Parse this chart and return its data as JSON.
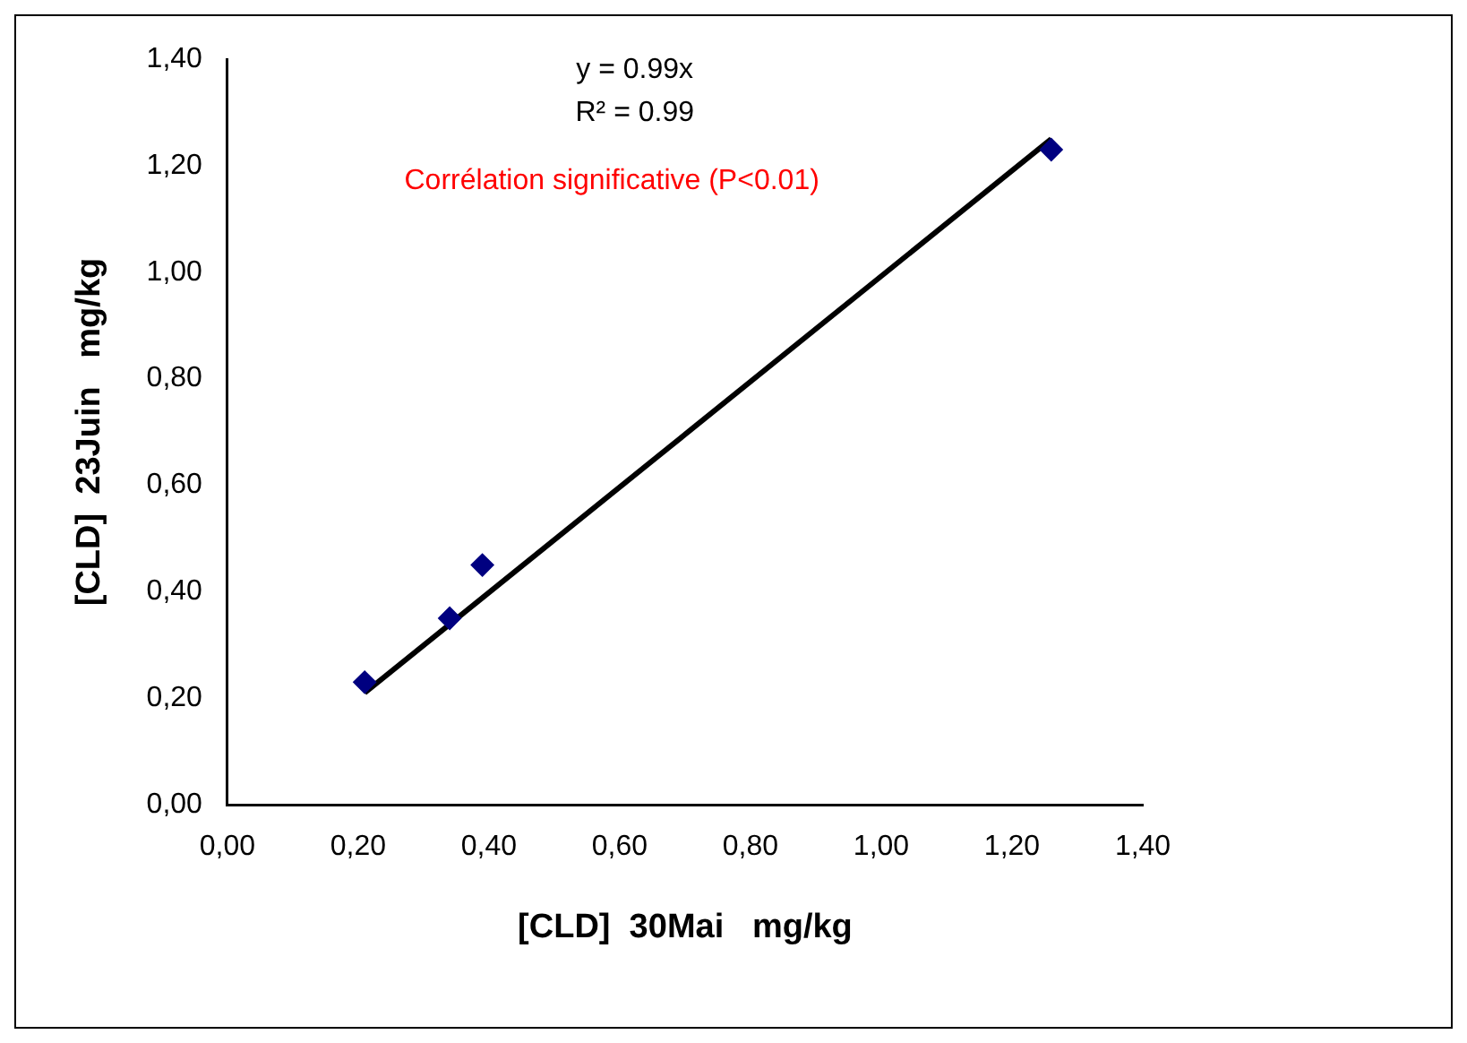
{
  "chart_data": {
    "type": "scatter",
    "xlabel": "[CLD]  30Mai   mg/kg",
    "ylabel": "[CLD]  23Juin   mg/kg",
    "annotations": [
      "y = 0.99x",
      "R² = 0.99",
      "Corrélation significative (P<0.01)"
    ],
    "series": [
      {
        "type": "scatter",
        "color": "#000080",
        "x": [
          0.21,
          0.34,
          0.39,
          1.26
        ],
        "values": [
          0.23,
          0.35,
          0.45,
          1.23
        ],
        "marker": "diamond"
      },
      {
        "type": "line",
        "color": "#000000",
        "x": [
          0.21,
          1.26
        ],
        "values": [
          0.21,
          1.25
        ]
      }
    ],
    "xlim": [
      0,
      1.4
    ],
    "ylim": [
      0,
      1.4
    ],
    "xticks": [
      {
        "value": 0,
        "label": "0,00"
      },
      {
        "value": 0.2,
        "label": "0,20"
      },
      {
        "value": 0.4,
        "label": "0,40"
      },
      {
        "value": 0.6,
        "label": "0,60"
      },
      {
        "value": 0.8,
        "label": "0,80"
      },
      {
        "value": 1,
        "label": "1,00"
      },
      {
        "value": 1.2,
        "label": "1,20"
      },
      {
        "value": 1.4,
        "label": "1,40"
      }
    ],
    "yticks": [
      {
        "value": 0,
        "label": "0,00"
      },
      {
        "value": 0.2,
        "label": "0,20"
      },
      {
        "value": 0.4,
        "label": "0,40"
      },
      {
        "value": 0.6,
        "label": "0,60"
      },
      {
        "value": 0.8,
        "label": "0,80"
      },
      {
        "value": 1,
        "label": "1,00"
      },
      {
        "value": 1.2,
        "label": "1,20"
      },
      {
        "value": 1.4,
        "label": "1,40"
      }
    ],
    "grid": false,
    "legend": false
  }
}
